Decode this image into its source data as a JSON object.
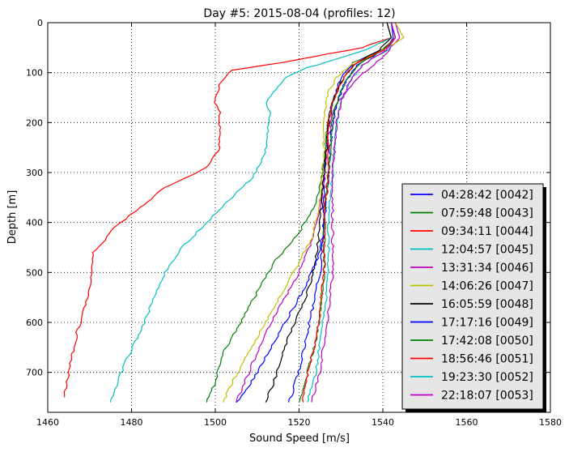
{
  "chart_data": {
    "type": "line",
    "title": "Day #5: 2015-08-04 (profiles: 12)",
    "xlabel": "Sound Speed [m/s]",
    "ylabel": "Depth [m]",
    "xlim": [
      1460,
      1580
    ],
    "ylim": [
      0,
      780
    ],
    "y_inverted": true,
    "xticks": [
      "1460",
      "1480",
      "1500",
      "1520",
      "1540",
      "1560",
      "1580"
    ],
    "yticks": [
      "0",
      "100",
      "200",
      "300",
      "400",
      "500",
      "600",
      "700"
    ],
    "grid": true,
    "legend_position": "lower right",
    "series": [
      {
        "name": "04:28:42 [0042]",
        "color": "#0000ff",
        "points": [
          [
            1542,
            0
          ],
          [
            1542.5,
            30
          ],
          [
            1541,
            50
          ],
          [
            1533,
            80
          ],
          [
            1530,
            110
          ],
          [
            1528,
            160
          ],
          [
            1527,
            200
          ],
          [
            1526,
            300
          ],
          [
            1526,
            400
          ],
          [
            1525,
            500
          ],
          [
            1523.5,
            560
          ],
          [
            1522,
            620
          ],
          [
            1520.5,
            680
          ],
          [
            1518.5,
            740
          ],
          [
            1517.5,
            760
          ]
        ]
      },
      {
        "name": "07:59:48 [0043]",
        "color": "#008000",
        "points": [
          [
            1542,
            0
          ],
          [
            1543,
            30
          ],
          [
            1540,
            55
          ],
          [
            1533,
            85
          ],
          [
            1530,
            120
          ],
          [
            1528,
            160
          ],
          [
            1527,
            200
          ],
          [
            1526,
            280
          ],
          [
            1524,
            360
          ],
          [
            1520,
            420
          ],
          [
            1514,
            480
          ],
          [
            1510,
            540
          ],
          [
            1506,
            600
          ],
          [
            1502,
            660
          ],
          [
            1500,
            720
          ],
          [
            1498,
            760
          ]
        ]
      },
      {
        "name": "09:34:11 [0044]",
        "color": "#ff0000",
        "points": [
          [
            1541,
            0
          ],
          [
            1542,
            30
          ],
          [
            1535,
            50
          ],
          [
            1516,
            80
          ],
          [
            1504,
            95
          ],
          [
            1501,
            120
          ],
          [
            1500,
            160
          ],
          [
            1501,
            180
          ],
          [
            1501,
            250
          ],
          [
            1498,
            290
          ],
          [
            1488,
            330
          ],
          [
            1482,
            370
          ],
          [
            1476,
            410
          ],
          [
            1471,
            460
          ],
          [
            1470,
            540
          ],
          [
            1467,
            620
          ],
          [
            1465,
            700
          ],
          [
            1464,
            750
          ]
        ]
      },
      {
        "name": "12:04:57 [0045]",
        "color": "#00bfbf",
        "points": [
          [
            1541,
            0
          ],
          [
            1542,
            30
          ],
          [
            1536,
            55
          ],
          [
            1522,
            90
          ],
          [
            1517,
            110
          ],
          [
            1514,
            140
          ],
          [
            1512,
            160
          ],
          [
            1513,
            180
          ],
          [
            1512,
            260
          ],
          [
            1509,
            310
          ],
          [
            1504,
            350
          ],
          [
            1498,
            400
          ],
          [
            1492,
            450
          ],
          [
            1488,
            500
          ],
          [
            1485,
            560
          ],
          [
            1482,
            620
          ],
          [
            1478,
            690
          ],
          [
            1476,
            740
          ],
          [
            1475,
            760
          ]
        ]
      },
      {
        "name": "13:31:34 [0046]",
        "color": "#bf00bf",
        "points": [
          [
            1543,
            0
          ],
          [
            1544,
            30
          ],
          [
            1541,
            60
          ],
          [
            1537,
            90
          ],
          [
            1533,
            120
          ],
          [
            1530,
            150
          ],
          [
            1528,
            180
          ],
          [
            1527,
            230
          ],
          [
            1526,
            300
          ],
          [
            1525,
            380
          ],
          [
            1523,
            440
          ],
          [
            1520,
            500
          ],
          [
            1516,
            560
          ],
          [
            1512,
            620
          ],
          [
            1509,
            680
          ],
          [
            1506,
            740
          ],
          [
            1505,
            760
          ]
        ]
      },
      {
        "name": "14:06:26 [0047]",
        "color": "#bfbf00",
        "points": [
          [
            1543,
            0
          ],
          [
            1545,
            30
          ],
          [
            1540,
            55
          ],
          [
            1533,
            80
          ],
          [
            1529,
            110
          ],
          [
            1527,
            140
          ],
          [
            1526,
            180
          ],
          [
            1526,
            260
          ],
          [
            1525,
            360
          ],
          [
            1523,
            430
          ],
          [
            1520,
            480
          ],
          [
            1516,
            540
          ],
          [
            1512,
            600
          ],
          [
            1508,
            660
          ],
          [
            1504,
            720
          ],
          [
            1502,
            760
          ]
        ]
      },
      {
        "name": "16:05:59 [0048]",
        "color": "#000000",
        "points": [
          [
            1541,
            0
          ],
          [
            1542,
            30
          ],
          [
            1539,
            55
          ],
          [
            1533,
            85
          ],
          [
            1530,
            120
          ],
          [
            1528,
            160
          ],
          [
            1527,
            200
          ],
          [
            1526,
            300
          ],
          [
            1525,
            400
          ],
          [
            1524,
            480
          ],
          [
            1522,
            540
          ],
          [
            1519,
            600
          ],
          [
            1516,
            660
          ],
          [
            1514,
            720
          ],
          [
            1512,
            760
          ]
        ]
      },
      {
        "name": "17:17:16 [0049]",
        "color": "#0000ff",
        "points": [
          [
            1542,
            0
          ],
          [
            1543,
            30
          ],
          [
            1540,
            55
          ],
          [
            1534,
            85
          ],
          [
            1531,
            120
          ],
          [
            1529,
            160
          ],
          [
            1528,
            200
          ],
          [
            1527,
            300
          ],
          [
            1526,
            400
          ],
          [
            1525,
            460
          ],
          [
            1522,
            520
          ],
          [
            1518,
            580
          ],
          [
            1514,
            640
          ],
          [
            1510,
            700
          ],
          [
            1507,
            740
          ],
          [
            1505,
            760
          ]
        ]
      },
      {
        "name": "17:42:08 [0050]",
        "color": "#008000",
        "points": [
          [
            1542,
            0
          ],
          [
            1543,
            30
          ],
          [
            1540,
            55
          ],
          [
            1534,
            85
          ],
          [
            1531,
            120
          ],
          [
            1529,
            160
          ],
          [
            1528,
            200
          ],
          [
            1527,
            300
          ],
          [
            1526,
            400
          ],
          [
            1526,
            500
          ],
          [
            1525,
            580
          ],
          [
            1524,
            640
          ],
          [
            1522,
            700
          ],
          [
            1520,
            760
          ]
        ]
      },
      {
        "name": "18:56:46 [0051]",
        "color": "#ff0000",
        "points": [
          [
            1542,
            0
          ],
          [
            1543,
            30
          ],
          [
            1540,
            55
          ],
          [
            1533,
            85
          ],
          [
            1530,
            120
          ],
          [
            1528,
            160
          ],
          [
            1527,
            200
          ],
          [
            1527,
            300
          ],
          [
            1526,
            400
          ],
          [
            1526,
            500
          ],
          [
            1525,
            580
          ],
          [
            1524,
            640
          ],
          [
            1522,
            700
          ],
          [
            1521,
            760
          ]
        ]
      },
      {
        "name": "19:23:30 [0052]",
        "color": "#00bfbf",
        "points": [
          [
            1542,
            0
          ],
          [
            1543,
            30
          ],
          [
            1541,
            55
          ],
          [
            1535,
            85
          ],
          [
            1532,
            120
          ],
          [
            1530,
            160
          ],
          [
            1529,
            200
          ],
          [
            1528,
            300
          ],
          [
            1527,
            400
          ],
          [
            1527,
            500
          ],
          [
            1526,
            580
          ],
          [
            1525,
            640
          ],
          [
            1524,
            700
          ],
          [
            1522,
            760
          ]
        ]
      },
      {
        "name": "22:18:07 [0053]",
        "color": "#bf00bf",
        "points": [
          [
            1542,
            0
          ],
          [
            1543,
            30
          ],
          [
            1541,
            55
          ],
          [
            1535,
            85
          ],
          [
            1532,
            120
          ],
          [
            1530,
            160
          ],
          [
            1529,
            200
          ],
          [
            1528,
            300
          ],
          [
            1528,
            400
          ],
          [
            1528,
            500
          ],
          [
            1527,
            580
          ],
          [
            1526,
            640
          ],
          [
            1525,
            700
          ],
          [
            1523,
            760
          ]
        ]
      }
    ]
  }
}
